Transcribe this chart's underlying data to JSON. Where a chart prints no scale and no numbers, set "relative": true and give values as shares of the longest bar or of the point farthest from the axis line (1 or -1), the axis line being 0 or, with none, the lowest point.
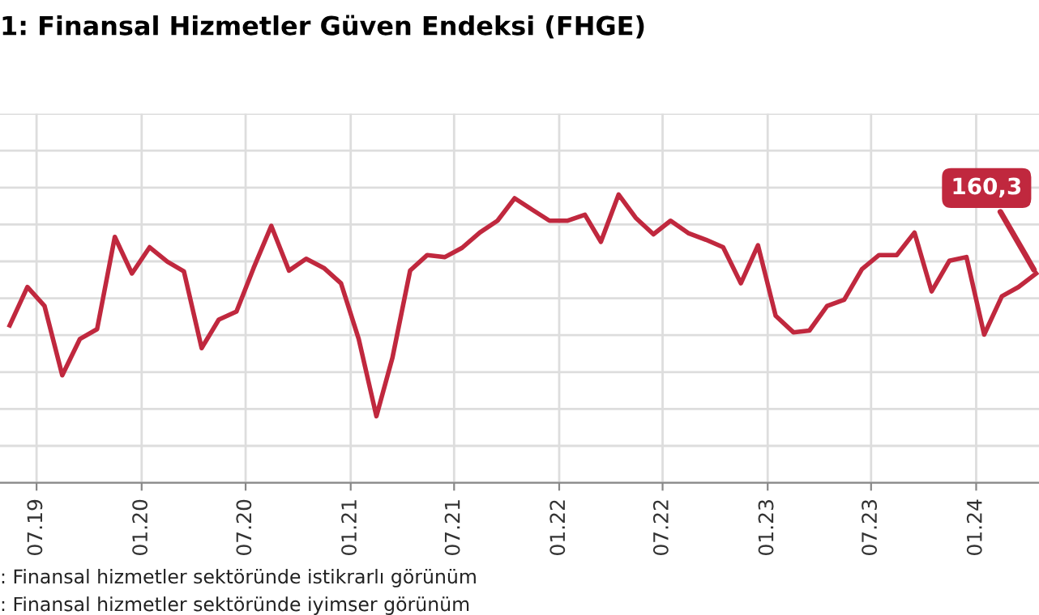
{
  "chart_data": {
    "type": "line",
    "title": "1: Finansal Hizmetler Güven Endeksi (FHGE)",
    "relative": true,
    "x": [
      "2019-05-15",
      "2019-06-15",
      "2019-07-15",
      "2019-08-15",
      "2019-09-15",
      "2019-10-15",
      "2019-11-15",
      "2019-12-15",
      "2020-01-15",
      "2020-02-15",
      "2020-03-15",
      "2020-04-15",
      "2020-05-15",
      "2020-06-15",
      "2020-07-15",
      "2020-08-15",
      "2020-09-15",
      "2020-10-15",
      "2020-11-15",
      "2020-12-15",
      "2021-01-15",
      "2021-02-15",
      "2021-03-15",
      "2021-04-15",
      "2021-05-15",
      "2021-06-15",
      "2021-07-15",
      "2021-08-15",
      "2021-09-15",
      "2021-10-15",
      "2021-11-15",
      "2021-12-15",
      "2022-01-15",
      "2022-02-15",
      "2022-03-15",
      "2022-04-15",
      "2022-05-15",
      "2022-06-15",
      "2022-07-15",
      "2022-08-15",
      "2022-09-15",
      "2022-10-15",
      "2022-11-15",
      "2022-12-15",
      "2023-01-15",
      "2023-02-15",
      "2023-03-15",
      "2023-04-15",
      "2023-05-15",
      "2023-06-15",
      "2023-07-15",
      "2023-08-15",
      "2023-09-15",
      "2023-10-15",
      "2023-11-15",
      "2023-12-15",
      "2024-01-15",
      "2024-02-15",
      "2024-03-15",
      "2024-04-15"
    ],
    "series": [
      {
        "color": "#c0283e",
        "values": [
          0.546,
          0.679,
          0.613,
          0.373,
          0.499,
          0.533,
          0.853,
          0.726,
          0.817,
          0.767,
          0.733,
          0.467,
          0.566,
          0.594,
          0.745,
          0.891,
          0.736,
          0.777,
          0.745,
          0.692,
          0.499,
          0.231,
          0.433,
          0.736,
          0.79,
          0.783,
          0.815,
          0.868,
          0.909,
          0.987,
          0.947,
          0.909,
          0.909,
          0.93,
          0.836,
          1.0,
          0.919,
          0.862,
          0.909,
          0.866,
          0.843,
          0.817,
          0.692,
          0.824,
          0.579,
          0.522,
          0.528,
          0.613,
          0.635,
          0.741,
          0.79,
          0.79,
          0.868,
          0.664,
          0.77,
          0.783,
          0.514,
          0.647,
          0.679,
          0.726
        ]
      }
    ],
    "xlim": [
      "2019-04-28",
      "2024-04-20"
    ],
    "xticks": [
      {
        "value": "2019-07-01",
        "label": "07.19"
      },
      {
        "value": "2020-01-01",
        "label": "01.20"
      },
      {
        "value": "2020-07-01",
        "label": "07.20"
      },
      {
        "value": "2021-01-01",
        "label": "01.21"
      },
      {
        "value": "2021-07-01",
        "label": "07.21"
      },
      {
        "value": "2022-01-01",
        "label": "01.22"
      },
      {
        "value": "2022-07-01",
        "label": "07.22"
      },
      {
        "value": "2023-01-01",
        "label": "01.23"
      },
      {
        "value": "2023-07-01",
        "label": "07.23"
      },
      {
        "value": "2024-01-01",
        "label": "01.24"
      }
    ],
    "tick_labels": "x",
    "grid": true,
    "legend": false,
    "annotations": [
      {
        "text": "160,3",
        "x": "2024-04-15",
        "y": 0.726
      },
      ": Finansal hizmetler sektöründe istikrarlı görünüm",
      ": Finansal hizmetler sektöründe iyimser görünüm"
    ]
  }
}
